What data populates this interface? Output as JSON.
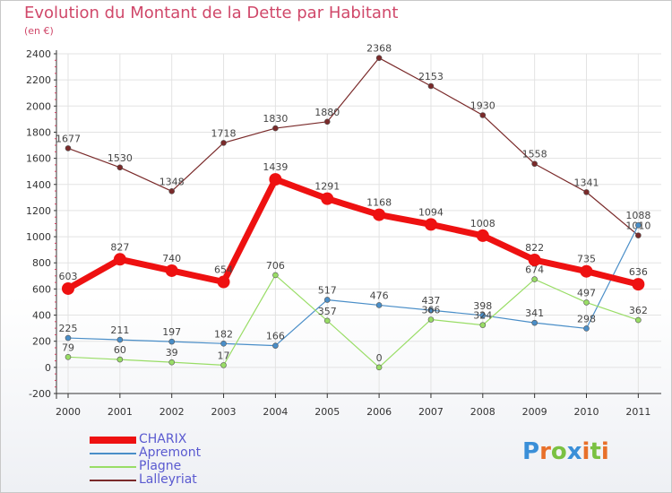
{
  "title": "Evolution du Montant de la Dette par Habitant",
  "subtitle": "(en €)",
  "logo": "Proxiti",
  "colors": {
    "title": "#d0486a",
    "axis": "#333333",
    "tick_marks": "#d04060",
    "grid": "#e3e3e3"
  },
  "chart_data": {
    "type": "line",
    "x": [
      "2000",
      "2001",
      "2002",
      "2003",
      "2004",
      "2005",
      "2006",
      "2007",
      "2008",
      "2009",
      "2010",
      "2011"
    ],
    "ylim": [
      -200,
      2400
    ],
    "yticks": [
      -200,
      0,
      200,
      400,
      600,
      800,
      1000,
      1200,
      1400,
      1600,
      1800,
      2000,
      2200,
      2400
    ],
    "grid": true,
    "legend_position": "bottom-left",
    "series": [
      {
        "name": "CHARIX",
        "color": "#ee1111",
        "values": [
          603,
          827,
          740,
          654,
          1439,
          1291,
          1168,
          1094,
          1008,
          822,
          735,
          636
        ]
      },
      {
        "name": "Apremont",
        "color": "#4a8ec8",
        "values": [
          225,
          211,
          197,
          182,
          166,
          517,
          476,
          437,
          398,
          341,
          298,
          1088
        ]
      },
      {
        "name": "Plagne",
        "color": "#99dd66",
        "values": [
          79,
          60,
          39,
          17,
          706,
          357,
          0,
          366,
          324,
          674,
          497,
          362
        ]
      },
      {
        "name": "Lalleyriat",
        "color": "#7a2a2a",
        "values": [
          1677,
          1530,
          1348,
          1718,
          1830,
          1880,
          2368,
          2153,
          1930,
          1558,
          1341,
          1010
        ]
      }
    ]
  }
}
